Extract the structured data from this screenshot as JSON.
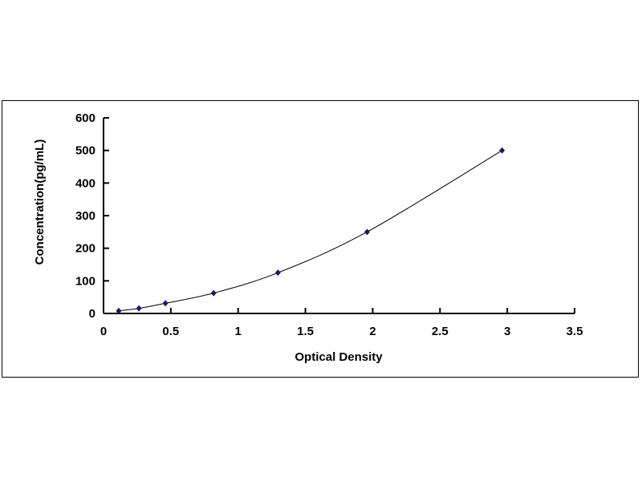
{
  "chart_data": {
    "type": "scatter",
    "title": "",
    "xlabel": "Optical Density",
    "ylabel": "Concentration(pg/mL)",
    "xlim": [
      0,
      3.5
    ],
    "ylim": [
      0,
      600
    ],
    "xticks": [
      "0",
      "0.5",
      "1",
      "1.5",
      "2",
      "2.5",
      "3",
      "3.5"
    ],
    "yticks": [
      "0",
      "100",
      "200",
      "300",
      "400",
      "500",
      "600"
    ],
    "grid": false,
    "legend": "none",
    "series": [
      {
        "x": [
          0.113,
          0.263,
          0.46,
          0.818,
          1.296,
          1.958,
          2.961
        ],
        "y": [
          7.8,
          15.6,
          31.25,
          62.5,
          125,
          250,
          500
        ],
        "marker": "diamond",
        "trendline": "smooth curve",
        "color": "#1a1a5e"
      }
    ]
  }
}
